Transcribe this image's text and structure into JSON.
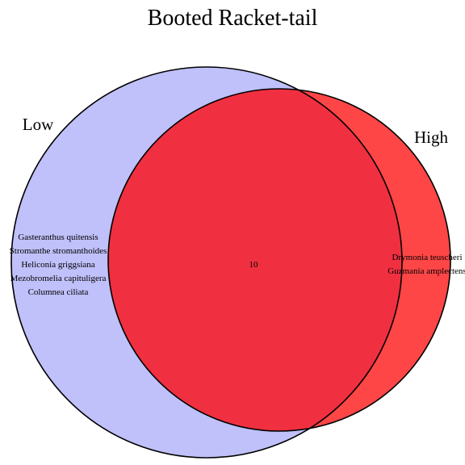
{
  "diagram": {
    "type": "venn",
    "title": "Booted Racket-tail",
    "sets": [
      {
        "name": "Low",
        "color": "#c0c0fa",
        "only_items": [
          "Gasteranthus quitensis",
          "Stromanthe stromanthoides",
          "Heliconia griggsiana",
          "Mezobromelia capituligera",
          "Columnea ciliata"
        ]
      },
      {
        "name": "High",
        "color": "#ff4646",
        "only_items": [
          "Drymonia teuscheri",
          "Guzmania amplectens"
        ]
      }
    ],
    "intersection": {
      "label": "10",
      "color": "#f03040"
    }
  }
}
